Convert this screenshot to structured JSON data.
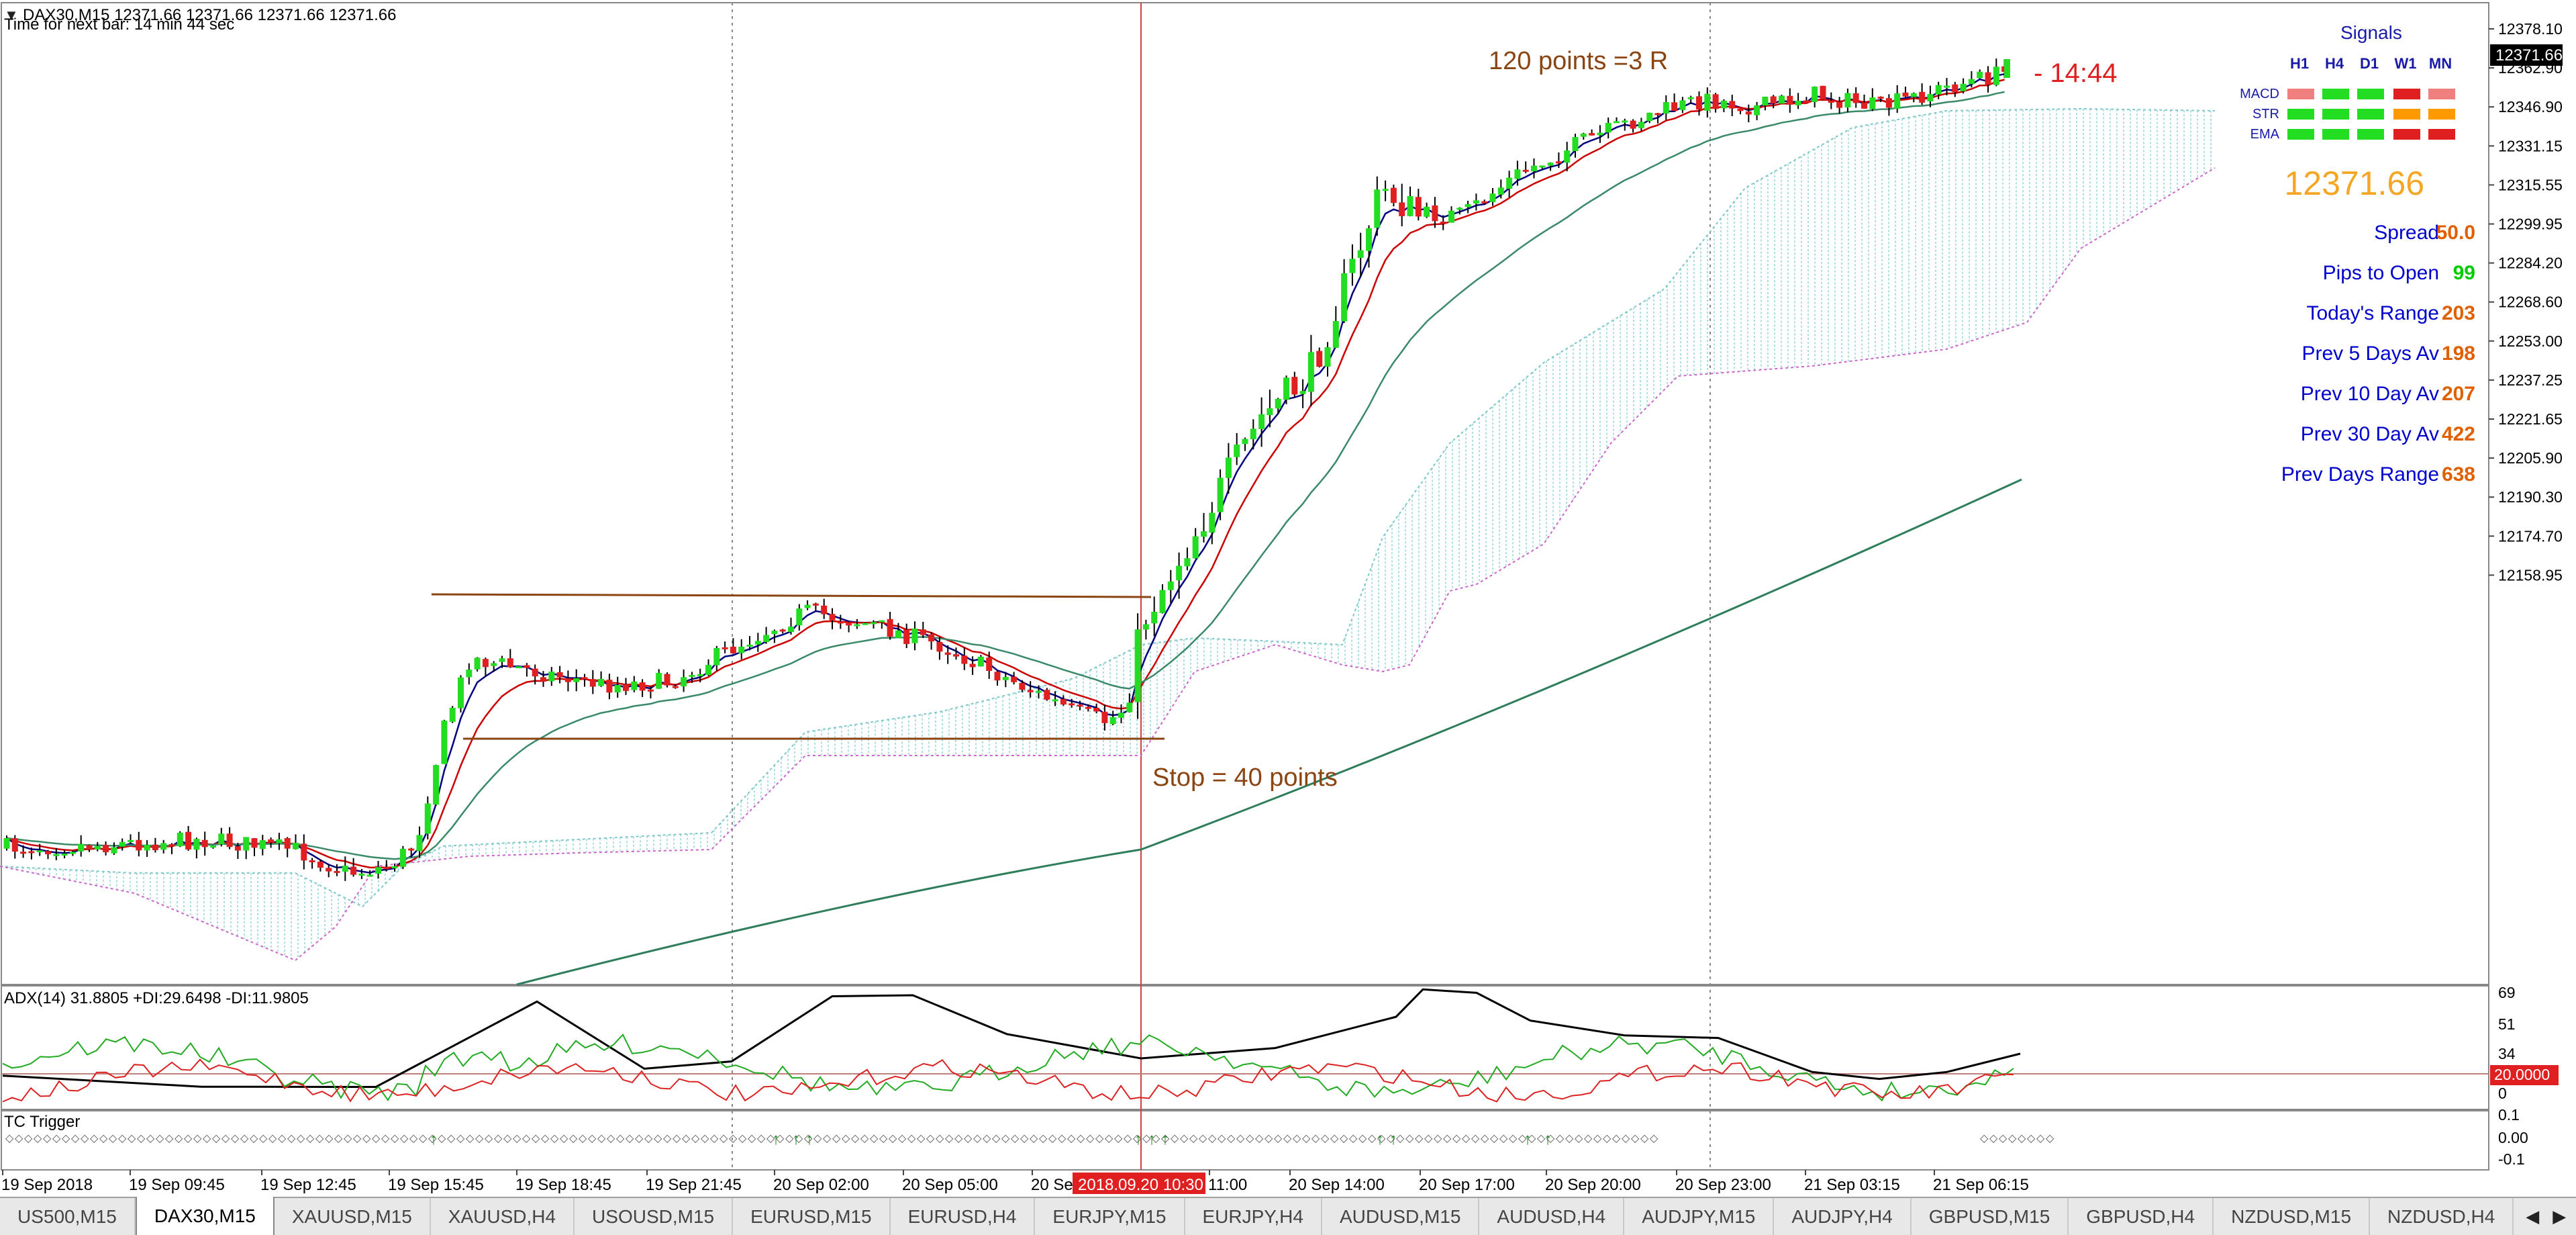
{
  "header": {
    "symbol_line": "DAX30,M15  12371.66 12371.66 12371.66 12371.66",
    "timer_line": "Time for next bar: 14 min 44 sec"
  },
  "annotations": {
    "target": "120 points =3 R",
    "stop": "Stop = 40 points",
    "countdown": "- 14:44"
  },
  "signals": {
    "title": "Signals",
    "timeframes": [
      "H1",
      "H4",
      "D1",
      "W1",
      "MN"
    ],
    "rows": [
      {
        "label": "MACD",
        "colors": [
          "#f08080",
          "#22dd22",
          "#22dd22",
          "#e02020",
          "#f08080"
        ]
      },
      {
        "label": "STR",
        "colors": [
          "#22dd22",
          "#22dd22",
          "#22dd22",
          "#ff9900",
          "#ff9900"
        ]
      },
      {
        "label": "EMA",
        "colors": [
          "#22dd22",
          "#22dd22",
          "#22dd22",
          "#e02020",
          "#e02020"
        ]
      }
    ]
  },
  "stats": {
    "price": "12371.66",
    "rows": [
      {
        "label": "Spread",
        "value": "50.0"
      },
      {
        "label": "Pips to Open",
        "value": "99"
      },
      {
        "label": "Today's Range",
        "value": "203"
      },
      {
        "label": "Prev 5 Days Av",
        "value": "198"
      },
      {
        "label": "Prev 10 Day Av",
        "value": "207"
      },
      {
        "label": "Prev 30 Day Av",
        "value": "422"
      },
      {
        "label": "Prev Days Range",
        "value": "638"
      }
    ],
    "colors": {
      "price": "#f5a623",
      "label": "#0000cc",
      "value_green": "#00cc00",
      "value_orange": "#e06000"
    }
  },
  "price_axis": {
    "labels": [
      "12378.10",
      "12362.90",
      "12346.90",
      "12331.15",
      "12315.55",
      "12299.95",
      "12284.20",
      "12268.60",
      "12253.00",
      "12237.25",
      "12221.65",
      "12205.90",
      "12190.30",
      "12174.70",
      "12158.95"
    ],
    "current": "12371.66"
  },
  "adx": {
    "title": "ADX(14) 31.8805 +DI:29.6498 -DI:11.9805",
    "axis": [
      "69",
      "51",
      "34",
      "20.0000",
      "0"
    ]
  },
  "tc": {
    "title": "TC Trigger",
    "axis": [
      "0.1",
      "0.00",
      "-0.1"
    ]
  },
  "time_axis": {
    "labels": [
      "19 Sep 2018",
      "19 Sep 09:45",
      "19 Sep 12:45",
      "19 Sep 15:45",
      "19 Sep 18:45",
      "19 Sep 21:45",
      "20 Sep 02:00",
      "20 Sep 05:00",
      "20 Se",
      "11:00",
      "20 Sep 14:00",
      "20 Sep 17:00",
      "20 Sep 20:00",
      "20 Sep 23:00",
      "21 Sep 03:15",
      "21 Sep 06:15"
    ],
    "cursor": "2018.09.20 10:30"
  },
  "tabs": [
    "US500,M15",
    "DAX30,M15",
    "XAUUSD,M15",
    "XAUUSD,H4",
    "USOUSD,M15",
    "EURUSD,M15",
    "EURUSD,H4",
    "EURJPY,M15",
    "EURJPY,H4",
    "AUDUSD,M15",
    "AUDUSD,H4",
    "AUDJPY,M15",
    "AUDJPY,H4",
    "GBPUSD,M15",
    "GBPUSD,H4",
    "NZDUSD,M15",
    "NZDUSD,H4"
  ],
  "active_tab": "DAX30,M15",
  "colors": {
    "bull": "#22dd22",
    "bear": "#e02020",
    "ma_fast": "#000080",
    "ma_mid": "#cc0000",
    "ma_slow": "#3a8a6a",
    "ma_long": "#2e7d5b",
    "annotation": "#8b4513",
    "countdown": "#e02020",
    "cloud": "#8fd3d8",
    "cloud_line": "#cc66cc"
  }
}
